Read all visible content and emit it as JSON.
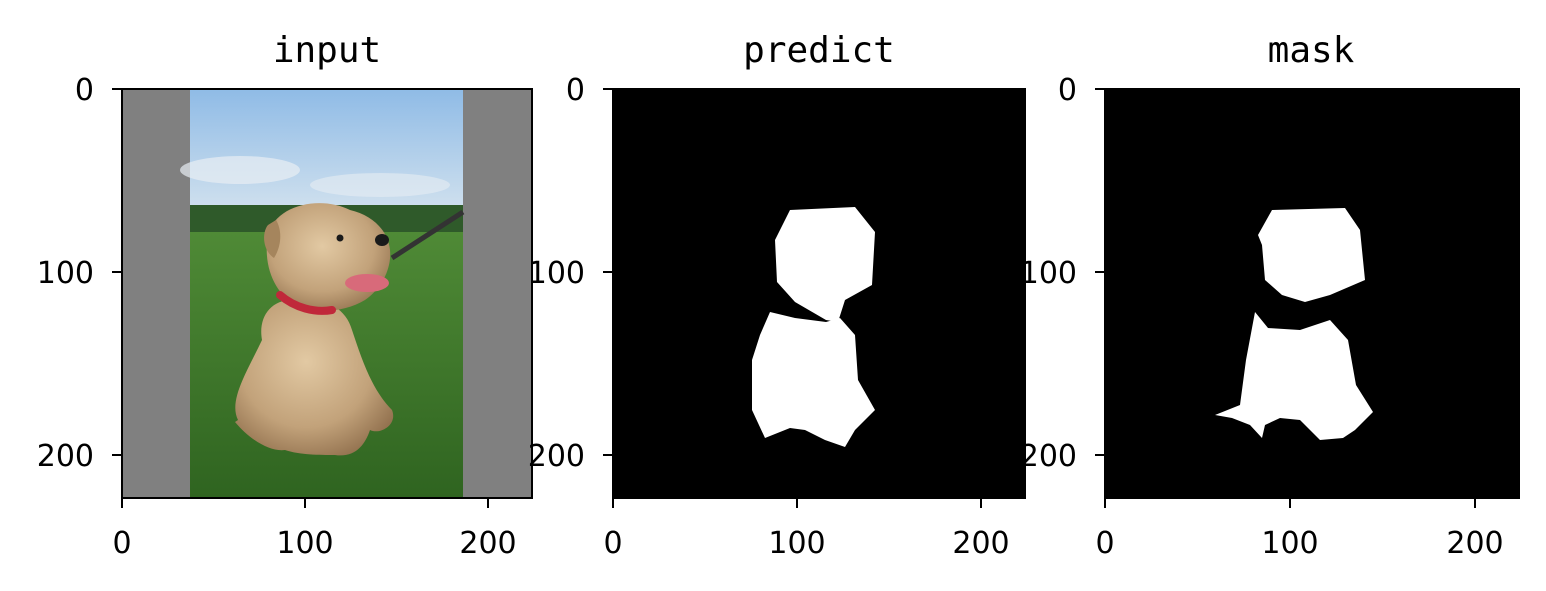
{
  "chart_data": [
    {
      "type": "image",
      "title": "input",
      "xlim": [
        0,
        224
      ],
      "ylim": [
        224,
        0
      ],
      "xticks": [
        0,
        100,
        200
      ],
      "yticks": [
        0,
        100,
        200
      ],
      "xtick_labels": [
        "0",
        "100",
        "200"
      ],
      "ytick_labels": [
        "0",
        "100",
        "200"
      ],
      "content": "photo of a small terrier dog sitting on grass, grey padding bars on left and right"
    },
    {
      "type": "image",
      "title": "predict",
      "xlim": [
        0,
        224
      ],
      "ylim": [
        224,
        0
      ],
      "xticks": [
        0,
        100,
        200
      ],
      "yticks": [
        0,
        100,
        200
      ],
      "xtick_labels": [
        "0",
        "100",
        "200"
      ],
      "ytick_labels": [
        "0",
        "100",
        "200"
      ],
      "content": "binary segmentation mask (white dog shape on black)"
    },
    {
      "type": "image",
      "title": "mask",
      "xlim": [
        0,
        224
      ],
      "ylim": [
        224,
        0
      ],
      "xticks": [
        0,
        100,
        200
      ],
      "yticks": [
        0,
        100,
        200
      ],
      "xtick_labels": [
        "0",
        "100",
        "200"
      ],
      "ytick_labels": [
        "0",
        "100",
        "200"
      ],
      "content": "ground-truth binary mask (white dog shape on black)"
    }
  ],
  "colors": {
    "padding_grey": "#808080",
    "mask_bg": "#000000",
    "mask_fg": "#ffffff",
    "sky": "#9cc4e6",
    "grass": "#3f7a2a",
    "dog_fur": "#c9ab82",
    "collar": "#c0283a"
  }
}
